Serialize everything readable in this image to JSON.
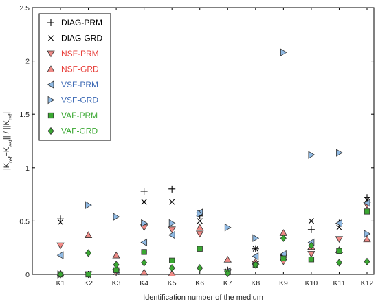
{
  "chart_data": {
    "type": "scatter",
    "title": "",
    "xlabel": "Identification number of the medium",
    "ylabel": "||K_ref−K_est|| / ||K_ref||",
    "categories": [
      "K1",
      "K2",
      "K3",
      "K4",
      "K5",
      "K6",
      "K7",
      "K8",
      "K9",
      "K10",
      "K11",
      "K12"
    ],
    "ylim": [
      0,
      2.5
    ],
    "yticks": [
      "0",
      "0.5",
      "1",
      "1.5",
      "2",
      "2.5"
    ],
    "grid": false,
    "legend_position": "top-left",
    "series": [
      {
        "name": "DIAG-PRM",
        "marker": "plus",
        "color": "#000000",
        "offset": 0.0,
        "values": [
          0.52,
          0.0,
          0.02,
          0.78,
          0.8,
          0.55,
          0.04,
          0.24,
          0.18,
          0.42,
          0.48,
          0.72
        ]
      },
      {
        "name": "DIAG-GRD",
        "marker": "x",
        "color": "#000000",
        "offset": 0.0,
        "values": [
          0.49,
          0.0,
          0.02,
          0.68,
          0.68,
          0.5,
          0.03,
          0.24,
          0.16,
          0.5,
          0.44,
          0.7
        ]
      },
      {
        "name": "NSF-PRM",
        "marker": "triangle-down",
        "color": "#e8413c",
        "offset": 0.0,
        "values": [
          0.27,
          0.0,
          0.02,
          0.44,
          0.42,
          0.38,
          0.02,
          0.1,
          0.12,
          0.19,
          0.33,
          0.65
        ]
      },
      {
        "name": "NSF-GRD",
        "marker": "triangle-up",
        "color": "#e8413c",
        "offset": 0.0,
        "values": [
          0.01,
          0.37,
          0.18,
          0.02,
          0.01,
          0.44,
          0.14,
          0.12,
          0.39,
          0.26,
          0.23,
          0.33
        ]
      },
      {
        "name": "VSF-PRM",
        "marker": "triangle-left",
        "color": "#3d6ab5",
        "offset": 0.0,
        "values": [
          0.18,
          0.0,
          0.03,
          0.3,
          0.37,
          0.58,
          0.03,
          0.17,
          0.19,
          0.3,
          0.48,
          0.67
        ]
      },
      {
        "name": "VSF-GRD",
        "marker": "triangle-right",
        "color": "#3d6ab5",
        "offset": 0.0,
        "values": [
          0.0,
          0.65,
          0.54,
          0.48,
          0.48,
          0.57,
          0.44,
          0.34,
          2.08,
          1.12,
          1.14,
          0.38
        ]
      },
      {
        "name": "VAF-PRM",
        "marker": "square",
        "color": "#3aa832",
        "offset": 0.0,
        "values": [
          0.0,
          0.0,
          0.04,
          0.21,
          0.13,
          0.24,
          0.02,
          0.09,
          0.15,
          0.14,
          0.22,
          0.59
        ]
      },
      {
        "name": "VAF-GRD",
        "marker": "diamond",
        "color": "#3aa832",
        "offset": 0.0,
        "values": [
          0.0,
          0.2,
          0.09,
          0.11,
          0.06,
          0.06,
          0.01,
          0.09,
          0.34,
          0.27,
          0.11,
          0.12
        ]
      }
    ]
  }
}
